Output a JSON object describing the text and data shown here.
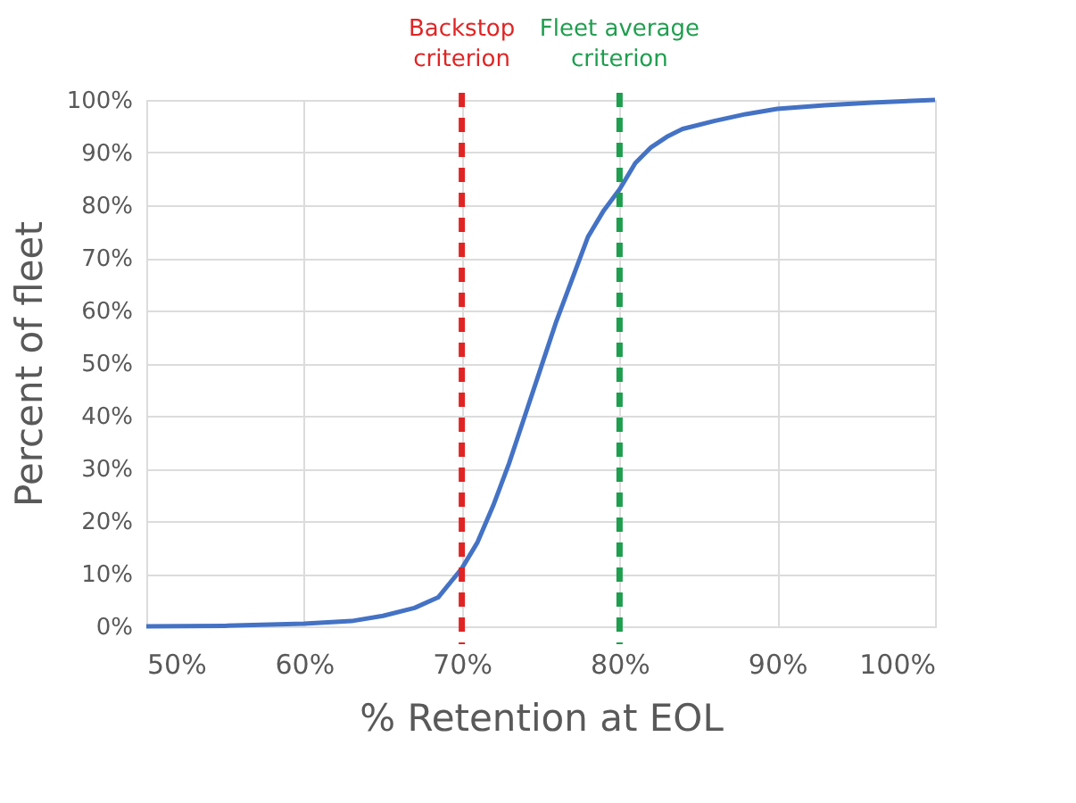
{
  "chart_data": {
    "type": "line",
    "xlabel": "% Retention at EOL",
    "ylabel": "Percent of fleet",
    "x": [
      50,
      55,
      60,
      63,
      65,
      67,
      68.5,
      70,
      71,
      72,
      73,
      74,
      75,
      76,
      77,
      78,
      79,
      80,
      81,
      82,
      83,
      84,
      86,
      88,
      90,
      93,
      96,
      100
    ],
    "series": [
      {
        "color": "#4472c4",
        "values": [
          0,
          0.1,
          0.5,
          1,
          2,
          3.5,
          5.5,
          11,
          16,
          23,
          31,
          40,
          49,
          58,
          66,
          74,
          79,
          83,
          88,
          91,
          93,
          94.5,
          96,
          97.3,
          98.3,
          99,
          99.5,
          100
        ]
      }
    ],
    "xlim": [
      50,
      100
    ],
    "ylim": [
      0,
      100
    ],
    "xticks": [
      {
        "value": 50,
        "label": "50%"
      },
      {
        "value": 60,
        "label": "60%"
      },
      {
        "value": 70,
        "label": "70%"
      },
      {
        "value": 80,
        "label": "80%"
      },
      {
        "value": 90,
        "label": "90%"
      },
      {
        "value": 100,
        "label": "100%"
      }
    ],
    "yticks": [
      {
        "value": 0,
        "label": "0%"
      },
      {
        "value": 10,
        "label": "10%"
      },
      {
        "value": 20,
        "label": "20%"
      },
      {
        "value": 30,
        "label": "30%"
      },
      {
        "value": 40,
        "label": "40%"
      },
      {
        "value": 50,
        "label": "50%"
      },
      {
        "value": 60,
        "label": "60%"
      },
      {
        "value": 70,
        "label": "70%"
      },
      {
        "value": 80,
        "label": "80%"
      },
      {
        "value": 90,
        "label": "90%"
      },
      {
        "value": 100,
        "label": "100%"
      }
    ],
    "ref_lines": [
      {
        "axis": "x",
        "value": 70,
        "label": "Backstop criterion",
        "color": "#e02424",
        "line_style": "dashed"
      },
      {
        "axis": "x",
        "value": 80,
        "label": "Fleet average criterion",
        "color": "#1f9e4f",
        "line_style": "dashed"
      }
    ],
    "grid": true,
    "marker": "none",
    "line_style": "solid"
  }
}
